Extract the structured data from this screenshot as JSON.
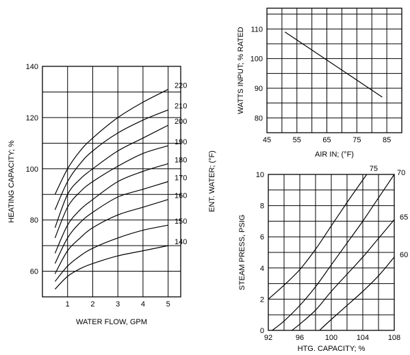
{
  "chart_data": [
    {
      "type": "line",
      "title": "",
      "xlabel": "WATER FLOW, GPM",
      "ylabel": "HEATING CAPACITY; %",
      "right_label": "ENT. WATER; (°F)",
      "xlim": [
        0,
        5.5
      ],
      "ylim": [
        50,
        140
      ],
      "xticks": [
        1,
        2,
        3,
        4,
        5
      ],
      "yticks": [
        60,
        80,
        100,
        120,
        140
      ],
      "grid": true,
      "series": [
        {
          "name": "220",
          "x": [
            0.5,
            1,
            1.5,
            2,
            3,
            4,
            5
          ],
          "y": [
            90,
            100,
            107,
            112,
            120,
            126,
            131
          ]
        },
        {
          "name": "210",
          "x": [
            0.5,
            1,
            1.5,
            2,
            3,
            4,
            5
          ],
          "y": [
            84,
            95,
            102,
            107,
            114,
            119,
            123
          ]
        },
        {
          "name": "200",
          "x": [
            0.5,
            1,
            1.5,
            2,
            3,
            4,
            5
          ],
          "y": [
            77,
            90,
            96,
            100,
            107,
            112,
            117
          ]
        },
        {
          "name": "190",
          "x": [
            0.5,
            1,
            1.5,
            2,
            3,
            4,
            5
          ],
          "y": [
            73,
            85,
            91,
            95,
            101,
            106,
            109
          ]
        },
        {
          "name": "180",
          "x": [
            0.5,
            1,
            1.5,
            2,
            3,
            4,
            5
          ],
          "y": [
            67,
            78,
            84,
            88,
            95,
            99,
            102
          ]
        },
        {
          "name": "170",
          "x": [
            0.5,
            1,
            1.5,
            2,
            3,
            4,
            5
          ],
          "y": [
            63,
            73,
            79,
            83,
            89,
            92,
            95
          ]
        },
        {
          "name": "160",
          "x": [
            0.5,
            1,
            1.5,
            2,
            3,
            4,
            5
          ],
          "y": [
            59,
            68,
            73,
            77,
            82,
            85,
            88
          ]
        },
        {
          "name": "150",
          "x": [
            0.5,
            1,
            1.5,
            2,
            3,
            4,
            5
          ],
          "y": [
            56,
            62,
            66,
            69,
            73,
            76,
            78
          ]
        },
        {
          "name": "140",
          "x": [
            0.5,
            1,
            1.5,
            2,
            3,
            4,
            5
          ],
          "y": [
            53,
            58,
            61,
            63,
            66,
            68,
            70
          ]
        }
      ]
    },
    {
      "type": "line",
      "title": "",
      "xlabel": "AIR IN; (°F)",
      "ylabel": "WATTS INPUT; % RATED",
      "xlim": [
        45,
        90
      ],
      "ylim": [
        75,
        117
      ],
      "xticks": [
        45,
        55,
        65,
        75,
        85
      ],
      "yticks": [
        80,
        90,
        100,
        110
      ],
      "grid": true,
      "series": [
        {
          "name": "",
          "x": [
            51,
            83.5
          ],
          "y": [
            109,
            87
          ]
        }
      ]
    },
    {
      "type": "line",
      "title": "",
      "xlabel": "HTG. CAPACITY; %",
      "ylabel": "STEAM PRESS, PSIG",
      "xlim": [
        92,
        108
      ],
      "ylim": [
        0,
        10
      ],
      "xticks": [
        92,
        96,
        100,
        104,
        108
      ],
      "yticks": [
        0,
        2,
        4,
        6,
        8,
        10
      ],
      "grid": true,
      "series": [
        {
          "name": "75",
          "x": [
            92,
            94,
            96,
            98,
            100,
            102,
            104.5
          ],
          "y": [
            2,
            2.9,
            3.9,
            5.2,
            6.7,
            8.2,
            10
          ]
        },
        {
          "name": "70",
          "x": [
            92.5,
            94,
            96,
            98,
            100,
            102,
            104,
            106,
            108
          ],
          "y": [
            0,
            0.6,
            1.6,
            2.8,
            4.2,
            5.6,
            7,
            8.5,
            10
          ]
        },
        {
          "name": "65",
          "x": [
            95,
            96,
            98,
            100,
            102,
            104,
            106,
            108
          ],
          "y": [
            0,
            0.4,
            1.3,
            2.5,
            3.6,
            4.7,
            5.9,
            7.1
          ]
        },
        {
          "name": "60",
          "x": [
            98.5,
            100,
            102,
            104,
            106,
            108
          ],
          "y": [
            0,
            0.7,
            1.6,
            2.5,
            3.5,
            4.7
          ]
        }
      ]
    }
  ]
}
